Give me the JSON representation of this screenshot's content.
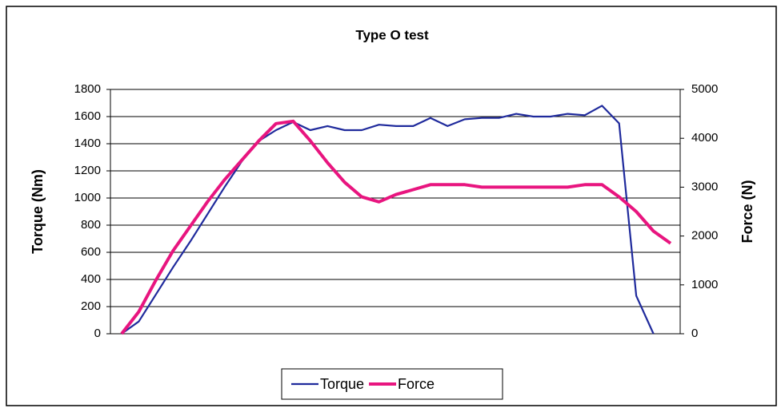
{
  "chart_data": {
    "type": "line",
    "title": "Type O test",
    "ylabel": "Torque (Nm)",
    "y2label": "Force (N)",
    "categories": [
      null,
      null,
      null,
      null,
      null,
      null,
      null,
      null,
      null,
      null,
      null,
      null,
      null,
      null,
      null,
      null,
      null,
      null,
      null,
      null,
      null,
      null,
      null,
      null,
      null,
      null,
      null,
      null,
      null,
      null,
      null,
      null,
      null
    ],
    "series": [
      {
        "name": "Torque",
        "color": "#1f2a9c",
        "values": [
          0,
          90,
          290,
          490,
          680,
          880,
          1080,
          1270,
          1420,
          1500,
          1560,
          1500,
          1530,
          1500,
          1500,
          1540,
          1530,
          1530,
          1590,
          1530,
          1580,
          1590,
          1590,
          1620,
          1600,
          1600,
          1620,
          1610,
          1680,
          1550,
          280,
          0,
          null
        ]
      },
      {
        "name": "Force",
        "color": "#e8157f",
        "axis": "y2",
        "values": [
          0,
          450,
          1100,
          1700,
          2200,
          2700,
          3150,
          3550,
          3950,
          4300,
          4350,
          3950,
          3500,
          3100,
          2800,
          2700,
          2850,
          2950,
          3050,
          3050,
          3050,
          3000,
          3000,
          3000,
          3000,
          3000,
          3000,
          3050,
          3050,
          2800,
          2500,
          2100,
          1850
        ]
      }
    ],
    "ylim": [
      0,
      1800
    ],
    "yticks": [
      0,
      200,
      400,
      600,
      800,
      1000,
      1200,
      1400,
      1600,
      1800
    ],
    "y2lim": [
      0,
      5000
    ],
    "y2ticks": [
      0,
      1000,
      2000,
      3000,
      4000,
      5000
    ],
    "grid": true,
    "legend": "bottom"
  }
}
